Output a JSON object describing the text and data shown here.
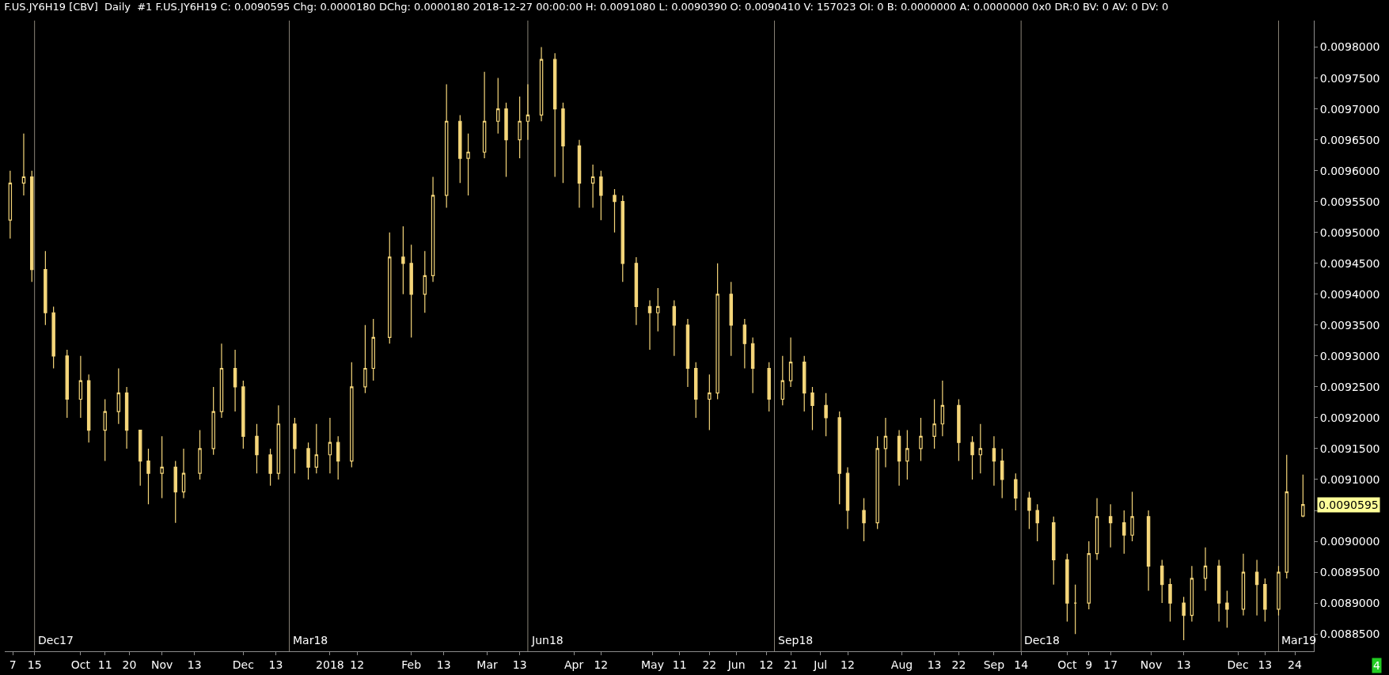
{
  "chart_data": {
    "type": "candlestick",
    "title": "F.US.JY6H19 [CBV]  Daily  #1 F.US.JY6H19 C: 0.0090595 Chg: 0.0000180 DChg: 0.0000180 2018-12-27 00:00:00 H: 0.0091080 L: 0.0090390 O: 0.0090410 V: 157023 OI: 0 B: 0.0000000 A: 0.0000000 0x0 DR:0 BV: 0 AV: 0 DV: 0",
    "color": "#f5d67a",
    "x": [
      "2017-09-06",
      "2017-09-11",
      "2017-09-14",
      "2017-09-19",
      "2017-09-22",
      "2017-09-27",
      "2017-10-02",
      "2017-10-05",
      "2017-10-11",
      "2017-10-16",
      "2017-10-19",
      "2017-10-24",
      "2017-10-27",
      "2017-11-01",
      "2017-11-06",
      "2017-11-09",
      "2017-11-15",
      "2017-11-20",
      "2017-11-23",
      "2017-11-28",
      "2017-12-01",
      "2017-12-06",
      "2017-12-11",
      "2017-12-14",
      "2017-12-20",
      "2017-12-25",
      "2017-12-28",
      "2018-01-02",
      "2018-01-05",
      "2018-01-10",
      "2018-01-15",
      "2018-01-18",
      "2018-01-24",
      "2018-01-29",
      "2018-02-01",
      "2018-02-06",
      "2018-02-09",
      "2018-02-14",
      "2018-02-19",
      "2018-02-22",
      "2018-02-28",
      "2018-03-05",
      "2018-03-08",
      "2018-03-13",
      "2018-03-16",
      "2018-03-21",
      "2018-03-26",
      "2018-03-29",
      "2018-04-04",
      "2018-04-09",
      "2018-04-12",
      "2018-04-17",
      "2018-04-20",
      "2018-04-25",
      "2018-04-30",
      "2018-05-03",
      "2018-05-09",
      "2018-05-14",
      "2018-05-17",
      "2018-05-22",
      "2018-05-25",
      "2018-05-30",
      "2018-06-04",
      "2018-06-07",
      "2018-06-13",
      "2018-06-18",
      "2018-06-21",
      "2018-06-26",
      "2018-06-29",
      "2018-07-04",
      "2018-07-09",
      "2018-07-12",
      "2018-07-18",
      "2018-07-23",
      "2018-07-26",
      "2018-07-31",
      "2018-08-03",
      "2018-08-08",
      "2018-08-13",
      "2018-08-16",
      "2018-08-22",
      "2018-08-27",
      "2018-08-30",
      "2018-09-04",
      "2018-09-07",
      "2018-09-12",
      "2018-09-17",
      "2018-09-20",
      "2018-09-26",
      "2018-10-01",
      "2018-10-04",
      "2018-10-09",
      "2018-10-12",
      "2018-10-17",
      "2018-10-22",
      "2018-10-25",
      "2018-10-31",
      "2018-11-05",
      "2018-11-08",
      "2018-11-13",
      "2018-11-16",
      "2018-11-21",
      "2018-11-26",
      "2018-11-29",
      "2018-12-05",
      "2018-12-10",
      "2018-12-13",
      "2018-12-18",
      "2018-12-21",
      "2018-12-27"
    ],
    "ohlc": [
      [
        0.00952,
        0.0096,
        0.00949,
        0.00958
      ],
      [
        0.00958,
        0.00966,
        0.00956,
        0.00959
      ],
      [
        0.00959,
        0.0096,
        0.00942,
        0.00944
      ],
      [
        0.00944,
        0.00947,
        0.00935,
        0.00937
      ],
      [
        0.00937,
        0.00938,
        0.00928,
        0.0093
      ],
      [
        0.0093,
        0.00931,
        0.0092,
        0.00923
      ],
      [
        0.00923,
        0.0093,
        0.0092,
        0.00926
      ],
      [
        0.00926,
        0.00927,
        0.00916,
        0.00918
      ],
      [
        0.00918,
        0.00923,
        0.00913,
        0.00921
      ],
      [
        0.00921,
        0.00928,
        0.00919,
        0.00924
      ],
      [
        0.00924,
        0.00925,
        0.00915,
        0.00918
      ],
      [
        0.00918,
        0.00918,
        0.00909,
        0.00913
      ],
      [
        0.00913,
        0.00915,
        0.00906,
        0.00911
      ],
      [
        0.00911,
        0.00917,
        0.00907,
        0.00912
      ],
      [
        0.00912,
        0.00913,
        0.00903,
        0.00908
      ],
      [
        0.00908,
        0.00915,
        0.00907,
        0.00911
      ],
      [
        0.00911,
        0.00918,
        0.0091,
        0.00915
      ],
      [
        0.00915,
        0.00925,
        0.00914,
        0.00921
      ],
      [
        0.00921,
        0.00932,
        0.0092,
        0.00928
      ],
      [
        0.00928,
        0.00931,
        0.00921,
        0.00925
      ],
      [
        0.00925,
        0.00926,
        0.00915,
        0.00917
      ],
      [
        0.00917,
        0.00919,
        0.00911,
        0.00914
      ],
      [
        0.00914,
        0.00915,
        0.00909,
        0.00911
      ],
      [
        0.00911,
        0.00922,
        0.0091,
        0.00919
      ],
      [
        0.00919,
        0.0092,
        0.00911,
        0.00915
      ],
      [
        0.00915,
        0.00916,
        0.0091,
        0.00912
      ],
      [
        0.00912,
        0.00919,
        0.00911,
        0.00914
      ],
      [
        0.00914,
        0.0092,
        0.00911,
        0.00916
      ],
      [
        0.00916,
        0.00917,
        0.0091,
        0.00913
      ],
      [
        0.00913,
        0.00929,
        0.00912,
        0.00925
      ],
      [
        0.00925,
        0.00935,
        0.00924,
        0.00928
      ],
      [
        0.00928,
        0.00936,
        0.00926,
        0.00933
      ],
      [
        0.00933,
        0.0095,
        0.00932,
        0.00946
      ],
      [
        0.00946,
        0.00951,
        0.0094,
        0.00945
      ],
      [
        0.00945,
        0.00948,
        0.00933,
        0.0094
      ],
      [
        0.0094,
        0.00947,
        0.00937,
        0.00943
      ],
      [
        0.00943,
        0.00959,
        0.00942,
        0.00956
      ],
      [
        0.00956,
        0.00974,
        0.00954,
        0.00968
      ],
      [
        0.00968,
        0.00969,
        0.00958,
        0.00962
      ],
      [
        0.00962,
        0.00966,
        0.00956,
        0.00963
      ],
      [
        0.00963,
        0.00976,
        0.00962,
        0.00968
      ],
      [
        0.00968,
        0.00975,
        0.00966,
        0.0097
      ],
      [
        0.0097,
        0.00971,
        0.00959,
        0.00965
      ],
      [
        0.00965,
        0.00972,
        0.00962,
        0.00968
      ],
      [
        0.00968,
        0.00974,
        0.00965,
        0.00969
      ],
      [
        0.00969,
        0.0098,
        0.00968,
        0.00978
      ],
      [
        0.00978,
        0.00979,
        0.00959,
        0.0097
      ],
      [
        0.0097,
        0.00971,
        0.00958,
        0.00964
      ],
      [
        0.00964,
        0.00965,
        0.00954,
        0.00958
      ],
      [
        0.00958,
        0.00961,
        0.00954,
        0.00959
      ],
      [
        0.00959,
        0.0096,
        0.00952,
        0.00956
      ],
      [
        0.00956,
        0.00957,
        0.0095,
        0.00955
      ],
      [
        0.00955,
        0.00956,
        0.00942,
        0.00945
      ],
      [
        0.00945,
        0.00946,
        0.00935,
        0.00938
      ],
      [
        0.00938,
        0.00939,
        0.00931,
        0.00937
      ],
      [
        0.00937,
        0.00941,
        0.00934,
        0.00938
      ],
      [
        0.00938,
        0.00939,
        0.0093,
        0.00935
      ],
      [
        0.00935,
        0.00936,
        0.00925,
        0.00928
      ],
      [
        0.00928,
        0.00929,
        0.0092,
        0.00923
      ],
      [
        0.00923,
        0.00927,
        0.00918,
        0.00924
      ],
      [
        0.00924,
        0.00945,
        0.00923,
        0.0094
      ],
      [
        0.0094,
        0.00942,
        0.0093,
        0.00935
      ],
      [
        0.00935,
        0.00936,
        0.00928,
        0.00932
      ],
      [
        0.00932,
        0.00933,
        0.00924,
        0.00928
      ],
      [
        0.00928,
        0.00929,
        0.00921,
        0.00923
      ],
      [
        0.00923,
        0.0093,
        0.00922,
        0.00926
      ],
      [
        0.00926,
        0.00933,
        0.00925,
        0.00929
      ],
      [
        0.00929,
        0.0093,
        0.00921,
        0.00924
      ],
      [
        0.00924,
        0.00925,
        0.00918,
        0.00922
      ],
      [
        0.00922,
        0.00924,
        0.00917,
        0.0092
      ],
      [
        0.0092,
        0.00921,
        0.00906,
        0.00911
      ],
      [
        0.00911,
        0.00912,
        0.00902,
        0.00905
      ],
      [
        0.00905,
        0.00907,
        0.009,
        0.00903
      ],
      [
        0.00903,
        0.00917,
        0.00902,
        0.00915
      ],
      [
        0.00915,
        0.0092,
        0.00912,
        0.00917
      ],
      [
        0.00917,
        0.00918,
        0.00909,
        0.00913
      ],
      [
        0.00913,
        0.00918,
        0.0091,
        0.00915
      ],
      [
        0.00915,
        0.0092,
        0.00913,
        0.00917
      ],
      [
        0.00917,
        0.00923,
        0.00915,
        0.00919
      ],
      [
        0.00919,
        0.00926,
        0.00917,
        0.00922
      ],
      [
        0.00922,
        0.00923,
        0.00913,
        0.00916
      ],
      [
        0.00916,
        0.00917,
        0.0091,
        0.00914
      ],
      [
        0.00914,
        0.00919,
        0.00911,
        0.00915
      ],
      [
        0.00915,
        0.00917,
        0.00909,
        0.00913
      ],
      [
        0.00913,
        0.00915,
        0.00907,
        0.0091
      ],
      [
        0.0091,
        0.00911,
        0.00905,
        0.00907
      ],
      [
        0.00907,
        0.00908,
        0.00902,
        0.00905
      ],
      [
        0.00905,
        0.00906,
        0.009,
        0.00903
      ],
      [
        0.00903,
        0.00904,
        0.00893,
        0.00897
      ],
      [
        0.00897,
        0.00898,
        0.00887,
        0.0089
      ],
      [
        0.0089,
        0.00893,
        0.00885,
        0.0089
      ],
      [
        0.0089,
        0.009,
        0.00889,
        0.00898
      ],
      [
        0.00898,
        0.00907,
        0.00897,
        0.00904
      ],
      [
        0.00904,
        0.00906,
        0.00899,
        0.00903
      ],
      [
        0.00903,
        0.00905,
        0.00898,
        0.00901
      ],
      [
        0.00901,
        0.00908,
        0.009,
        0.00904
      ],
      [
        0.00904,
        0.00905,
        0.00892,
        0.00896
      ],
      [
        0.00896,
        0.00897,
        0.0089,
        0.00893
      ],
      [
        0.00893,
        0.00894,
        0.00887,
        0.0089
      ],
      [
        0.0089,
        0.00891,
        0.00884,
        0.00888
      ],
      [
        0.00888,
        0.00896,
        0.00887,
        0.00894
      ],
      [
        0.00894,
        0.00899,
        0.00892,
        0.00896
      ],
      [
        0.00896,
        0.00897,
        0.00887,
        0.0089
      ],
      [
        0.0089,
        0.00892,
        0.00886,
        0.00889
      ],
      [
        0.00889,
        0.00898,
        0.00888,
        0.00895
      ],
      [
        0.00895,
        0.00897,
        0.00888,
        0.00893
      ],
      [
        0.00893,
        0.00894,
        0.00887,
        0.00889
      ],
      [
        0.00889,
        0.00896,
        0.00888,
        0.00895
      ],
      [
        0.00895,
        0.00914,
        0.00894,
        0.00908
      ],
      [
        0.009041,
        0.009108,
        0.009039,
        0.0090595
      ]
    ],
    "xlim": [
      "2017-09-04",
      "2018-12-31"
    ],
    "xticks": [
      {
        "value": "2017-09-07",
        "label": "7"
      },
      {
        "value": "2017-09-15",
        "label": "15"
      },
      {
        "value": "2017-10-02",
        "label": "Oct"
      },
      {
        "value": "2017-10-11",
        "label": "11"
      },
      {
        "value": "2017-10-20",
        "label": "20"
      },
      {
        "value": "2017-11-01",
        "label": "Nov"
      },
      {
        "value": "2017-11-13",
        "label": "13"
      },
      {
        "value": "2017-12-01",
        "label": "Dec"
      },
      {
        "value": "2017-12-13",
        "label": "13"
      },
      {
        "value": "2018-01-02",
        "label": "2018"
      },
      {
        "value": "2018-01-12",
        "label": "12"
      },
      {
        "value": "2018-02-01",
        "label": "Feb"
      },
      {
        "value": "2018-02-13",
        "label": "13"
      },
      {
        "value": "2018-03-01",
        "label": "Mar"
      },
      {
        "value": "2018-03-13",
        "label": "13"
      },
      {
        "value": "2018-04-02",
        "label": "Apr"
      },
      {
        "value": "2018-04-12",
        "label": "12"
      },
      {
        "value": "2018-05-01",
        "label": "May"
      },
      {
        "value": "2018-05-11",
        "label": "11"
      },
      {
        "value": "2018-05-22",
        "label": "22"
      },
      {
        "value": "2018-06-01",
        "label": "Jun"
      },
      {
        "value": "2018-06-12",
        "label": "12"
      },
      {
        "value": "2018-06-21",
        "label": "21"
      },
      {
        "value": "2018-07-02",
        "label": "Jul"
      },
      {
        "value": "2018-07-12",
        "label": "12"
      },
      {
        "value": "2018-08-01",
        "label": "Aug"
      },
      {
        "value": "2018-08-13",
        "label": "13"
      },
      {
        "value": "2018-08-22",
        "label": "22"
      },
      {
        "value": "2018-09-04",
        "label": "Sep"
      },
      {
        "value": "2018-09-14",
        "label": "14"
      },
      {
        "value": "2018-10-01",
        "label": "Oct"
      },
      {
        "value": "2018-10-09",
        "label": "9"
      },
      {
        "value": "2018-10-17",
        "label": "17"
      },
      {
        "value": "2018-11-01",
        "label": "Nov"
      },
      {
        "value": "2018-11-13",
        "label": "13"
      },
      {
        "value": "2018-12-03",
        "label": "Dec"
      },
      {
        "value": "2018-12-13",
        "label": "13"
      },
      {
        "value": "2018-12-24",
        "label": "24"
      }
    ],
    "ylim": [
      0.008822,
      0.009843
    ],
    "yticks": [
      {
        "value": 0.00885,
        "label": "0.0088500"
      },
      {
        "value": 0.0089,
        "label": "0.0089000"
      },
      {
        "value": 0.00895,
        "label": "0.0089500"
      },
      {
        "value": 0.009,
        "label": "0.0090000"
      },
      {
        "value": 0.00905,
        "label": null
      },
      {
        "value": 0.0091,
        "label": "0.0091000"
      },
      {
        "value": 0.00915,
        "label": "0.0091500"
      },
      {
        "value": 0.0092,
        "label": "0.0092000"
      },
      {
        "value": 0.00925,
        "label": "0.0092500"
      },
      {
        "value": 0.0093,
        "label": "0.0093000"
      },
      {
        "value": 0.00935,
        "label": "0.0093500"
      },
      {
        "value": 0.0094,
        "label": "0.0094000"
      },
      {
        "value": 0.00945,
        "label": "0.0094500"
      },
      {
        "value": 0.0095,
        "label": "0.0095000"
      },
      {
        "value": 0.00955,
        "label": "0.0095500"
      },
      {
        "value": 0.0096,
        "label": "0.0096000"
      },
      {
        "value": 0.00965,
        "label": "0.0096500"
      },
      {
        "value": 0.0097,
        "label": "0.0097000"
      },
      {
        "value": 0.00975,
        "label": "0.0097500"
      },
      {
        "value": 0.0098,
        "label": "0.0098000"
      }
    ],
    "ref_lines": [
      {
        "axis": "x",
        "value": "2017-09-15",
        "label": "Dec17",
        "color": "#8a8478"
      },
      {
        "axis": "x",
        "value": "2017-12-18",
        "label": "Mar18",
        "color": "#8a8478"
      },
      {
        "axis": "x",
        "value": "2018-03-16",
        "label": "Jun18",
        "color": "#8a8478"
      },
      {
        "axis": "x",
        "value": "2018-06-15",
        "label": "Sep18",
        "color": "#8a8478"
      },
      {
        "axis": "x",
        "value": "2018-09-14",
        "label": "Dec18",
        "color": "#8a8478"
      },
      {
        "axis": "x",
        "value": "2018-12-18",
        "label": "Mar19",
        "color": "#8a8478"
      }
    ],
    "annotations": [
      "0.0090595",
      "4"
    ],
    "grid": false
  }
}
